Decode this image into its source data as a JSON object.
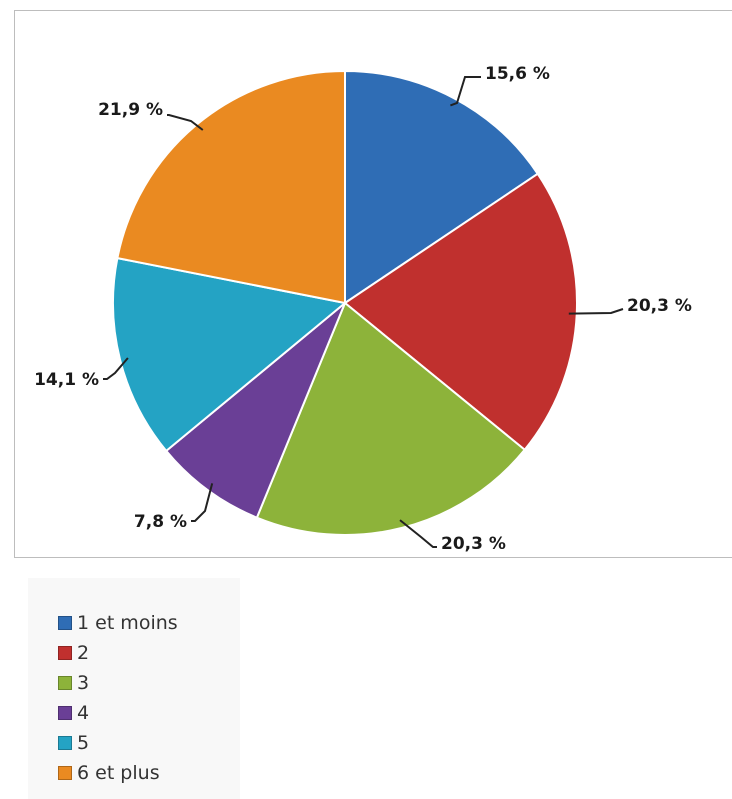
{
  "chart_data": {
    "type": "pie",
    "title": "",
    "slices": [
      {
        "label": "1 et moins",
        "value": 15.6,
        "display": "15,6 %",
        "color": "#2f6db5"
      },
      {
        "label": "2",
        "value": 20.3,
        "display": "20,3 %",
        "color": "#c0302e"
      },
      {
        "label": "3",
        "value": 20.3,
        "display": "20,3 %",
        "color": "#8db33a"
      },
      {
        "label": "4",
        "value": 7.8,
        "display": "7,8 %",
        "color": "#6a3f96"
      },
      {
        "label": "5",
        "value": 14.1,
        "display": "14,1 %",
        "color": "#24a3c4"
      },
      {
        "label": "6 et plus",
        "value": 21.9,
        "display": "21,9 %",
        "color": "#ea8a21"
      }
    ],
    "start_angle_deg": 0,
    "direction": "clockwise",
    "legend_position": "bottom-left"
  }
}
